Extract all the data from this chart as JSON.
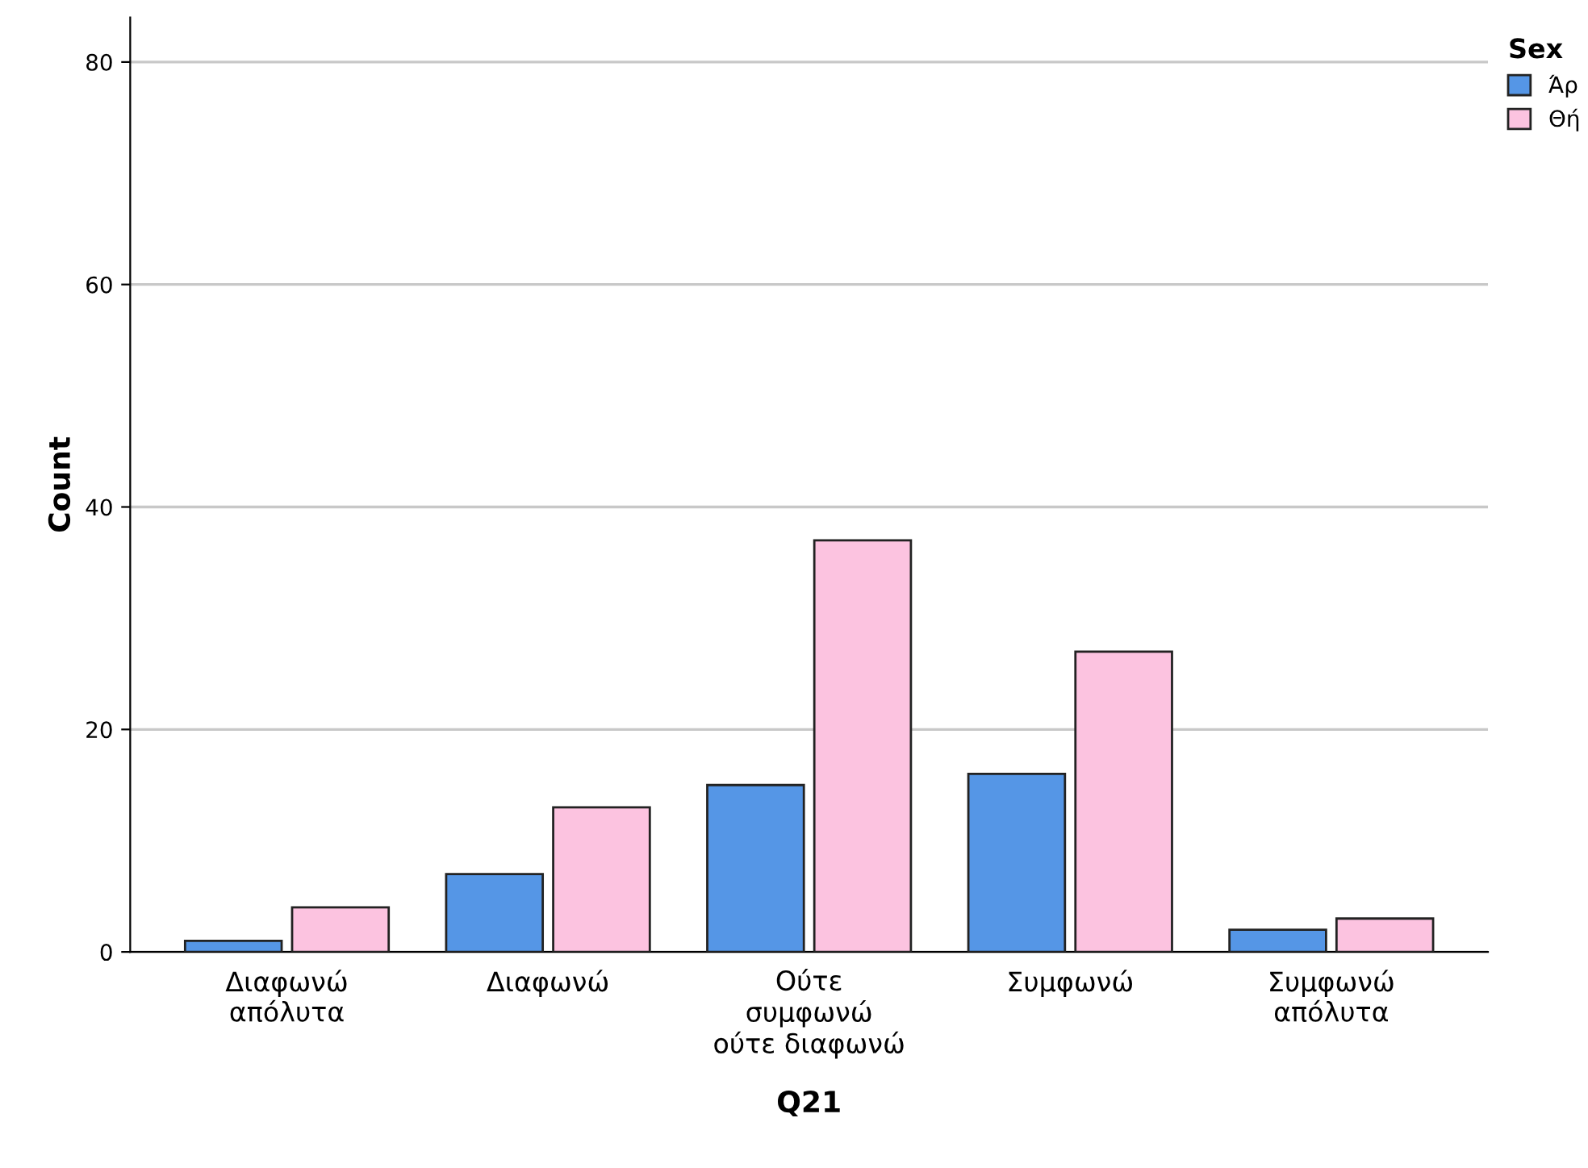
{
  "chart_data": {
    "type": "bar",
    "xlabel": "Q21",
    "ylabel": "Count",
    "legend_title": "Sex",
    "categories": [
      "Διαφωνώ\nαπόλυτα",
      "Διαφωνώ",
      "Ούτε\nσυμφωνώ\nούτε διαφωνώ",
      "Συμφωνώ",
      "Συμφωνώ\nαπόλυτα"
    ],
    "series": [
      {
        "name": "Άρ",
        "color": "#5596e6",
        "values": [
          1,
          7,
          15,
          16,
          2
        ]
      },
      {
        "name": "Θή",
        "color": "#fcc3e0",
        "values": [
          4,
          13,
          37,
          27,
          3
        ]
      }
    ],
    "ylim": [
      0,
      84
    ],
    "yticks": [
      0,
      20,
      40,
      60,
      80
    ],
    "grid": "y",
    "legend": "top right"
  }
}
